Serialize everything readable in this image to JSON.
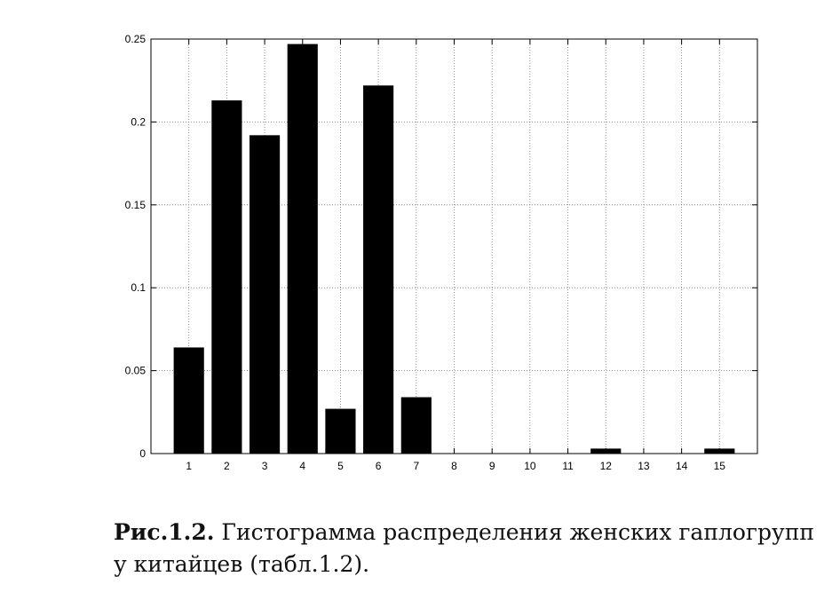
{
  "caption": {
    "label": "Рис.1.2.",
    "text": " Гистограмма распределения женских гаплогрупп у китайцев (табл.1.2)."
  },
  "chart_data": {
    "type": "bar",
    "categories": [
      "1",
      "2",
      "3",
      "4",
      "5",
      "6",
      "7",
      "8",
      "9",
      "10",
      "11",
      "12",
      "13",
      "14",
      "15"
    ],
    "values": [
      0.064,
      0.213,
      0.192,
      0.247,
      0.027,
      0.222,
      0.034,
      0,
      0,
      0,
      0,
      0.003,
      0,
      0,
      0.003
    ],
    "ylim": [
      0,
      0.25
    ],
    "yticks": [
      0,
      0.05,
      0.1,
      0.15,
      0.2,
      0.25
    ],
    "ytick_labels": [
      "0",
      "0.05",
      "0.1",
      "0.15",
      "0.2",
      "0.25"
    ],
    "xlim": [
      0,
      16
    ],
    "grid": true,
    "bar_color": "#000000",
    "title": "",
    "xlabel": "",
    "ylabel": ""
  }
}
